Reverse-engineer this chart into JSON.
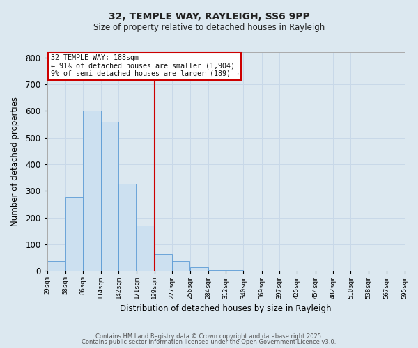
{
  "title": "32, TEMPLE WAY, RAYLEIGH, SS6 9PP",
  "subtitle": "Size of property relative to detached houses in Rayleigh",
  "xlabel": "Distribution of detached houses by size in Rayleigh",
  "ylabel": "Number of detached properties",
  "bar_left_edges": [
    29,
    58,
    86,
    114,
    142,
    171,
    199,
    227,
    256,
    284,
    312,
    340,
    369,
    397,
    425,
    454,
    482,
    510,
    538,
    567
  ],
  "bar_heights": [
    37,
    278,
    600,
    560,
    328,
    170,
    63,
    37,
    15,
    5,
    5,
    0,
    0,
    0,
    0,
    0,
    0,
    0,
    0,
    2
  ],
  "bin_width": 28,
  "bar_color": "#cce0f0",
  "bar_edge_color": "#5b9bd5",
  "vline_x": 199,
  "vline_color": "#cc0000",
  "ylim": [
    0,
    820
  ],
  "yticks": [
    0,
    100,
    200,
    300,
    400,
    500,
    600,
    700,
    800
  ],
  "xtick_labels": [
    "29sqm",
    "58sqm",
    "86sqm",
    "114sqm",
    "142sqm",
    "171sqm",
    "199sqm",
    "227sqm",
    "256sqm",
    "284sqm",
    "312sqm",
    "340sqm",
    "369sqm",
    "397sqm",
    "425sqm",
    "454sqm",
    "482sqm",
    "510sqm",
    "538sqm",
    "567sqm",
    "595sqm"
  ],
  "annotation_title": "32 TEMPLE WAY: 188sqm",
  "annotation_line1": "← 91% of detached houses are smaller (1,904)",
  "annotation_line2": "9% of semi-detached houses are larger (189) →",
  "annotation_box_color": "#ffffff",
  "annotation_box_edge": "#cc0000",
  "grid_color": "#c8d8e8",
  "bg_color": "#dce8f0",
  "footer1": "Contains HM Land Registry data © Crown copyright and database right 2025.",
  "footer2": "Contains public sector information licensed under the Open Government Licence v3.0."
}
